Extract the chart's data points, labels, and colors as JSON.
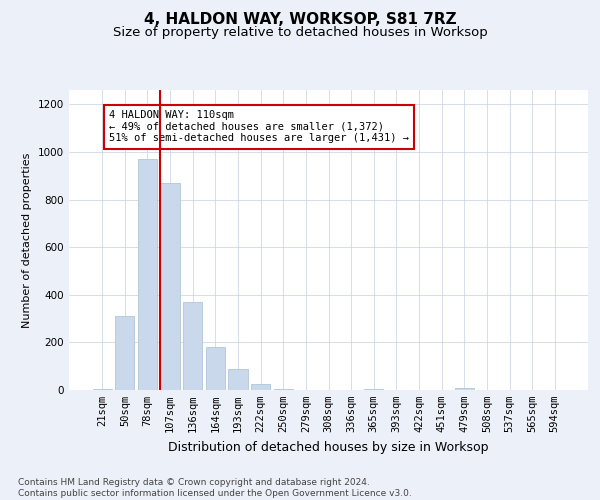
{
  "title1": "4, HALDON WAY, WORKSOP, S81 7RZ",
  "title2": "Size of property relative to detached houses in Worksop",
  "xlabel": "Distribution of detached houses by size in Worksop",
  "ylabel": "Number of detached properties",
  "categories": [
    "21sqm",
    "50sqm",
    "78sqm",
    "107sqm",
    "136sqm",
    "164sqm",
    "193sqm",
    "222sqm",
    "250sqm",
    "279sqm",
    "308sqm",
    "336sqm",
    "365sqm",
    "393sqm",
    "422sqm",
    "451sqm",
    "479sqm",
    "508sqm",
    "537sqm",
    "565sqm",
    "594sqm"
  ],
  "values": [
    5,
    310,
    970,
    870,
    370,
    180,
    90,
    25,
    5,
    2,
    1,
    1,
    5,
    1,
    1,
    1,
    8,
    0,
    0,
    0,
    0
  ],
  "bar_color": "#c9d9eb",
  "bar_edge_color": "#a8bfd4",
  "red_line_index": 3,
  "red_line_color": "#cc0000",
  "annotation_text": "4 HALDON WAY: 110sqm\n← 49% of detached houses are smaller (1,372)\n51% of semi-detached houses are larger (1,431) →",
  "annotation_box_facecolor": "#ffffff",
  "annotation_box_edgecolor": "#cc0000",
  "ylim": [
    0,
    1260
  ],
  "yticks": [
    0,
    200,
    400,
    600,
    800,
    1000,
    1200
  ],
  "footer_text": "Contains HM Land Registry data © Crown copyright and database right 2024.\nContains public sector information licensed under the Open Government Licence v3.0.",
  "background_color": "#ecf0f8",
  "plot_bg_color": "#ffffff",
  "grid_color": "#c8d0e0",
  "title1_fontsize": 11,
  "title2_fontsize": 9.5,
  "xlabel_fontsize": 9,
  "ylabel_fontsize": 8,
  "tick_fontsize": 7.5,
  "footer_fontsize": 6.5,
  "ann_fontsize": 7.5
}
